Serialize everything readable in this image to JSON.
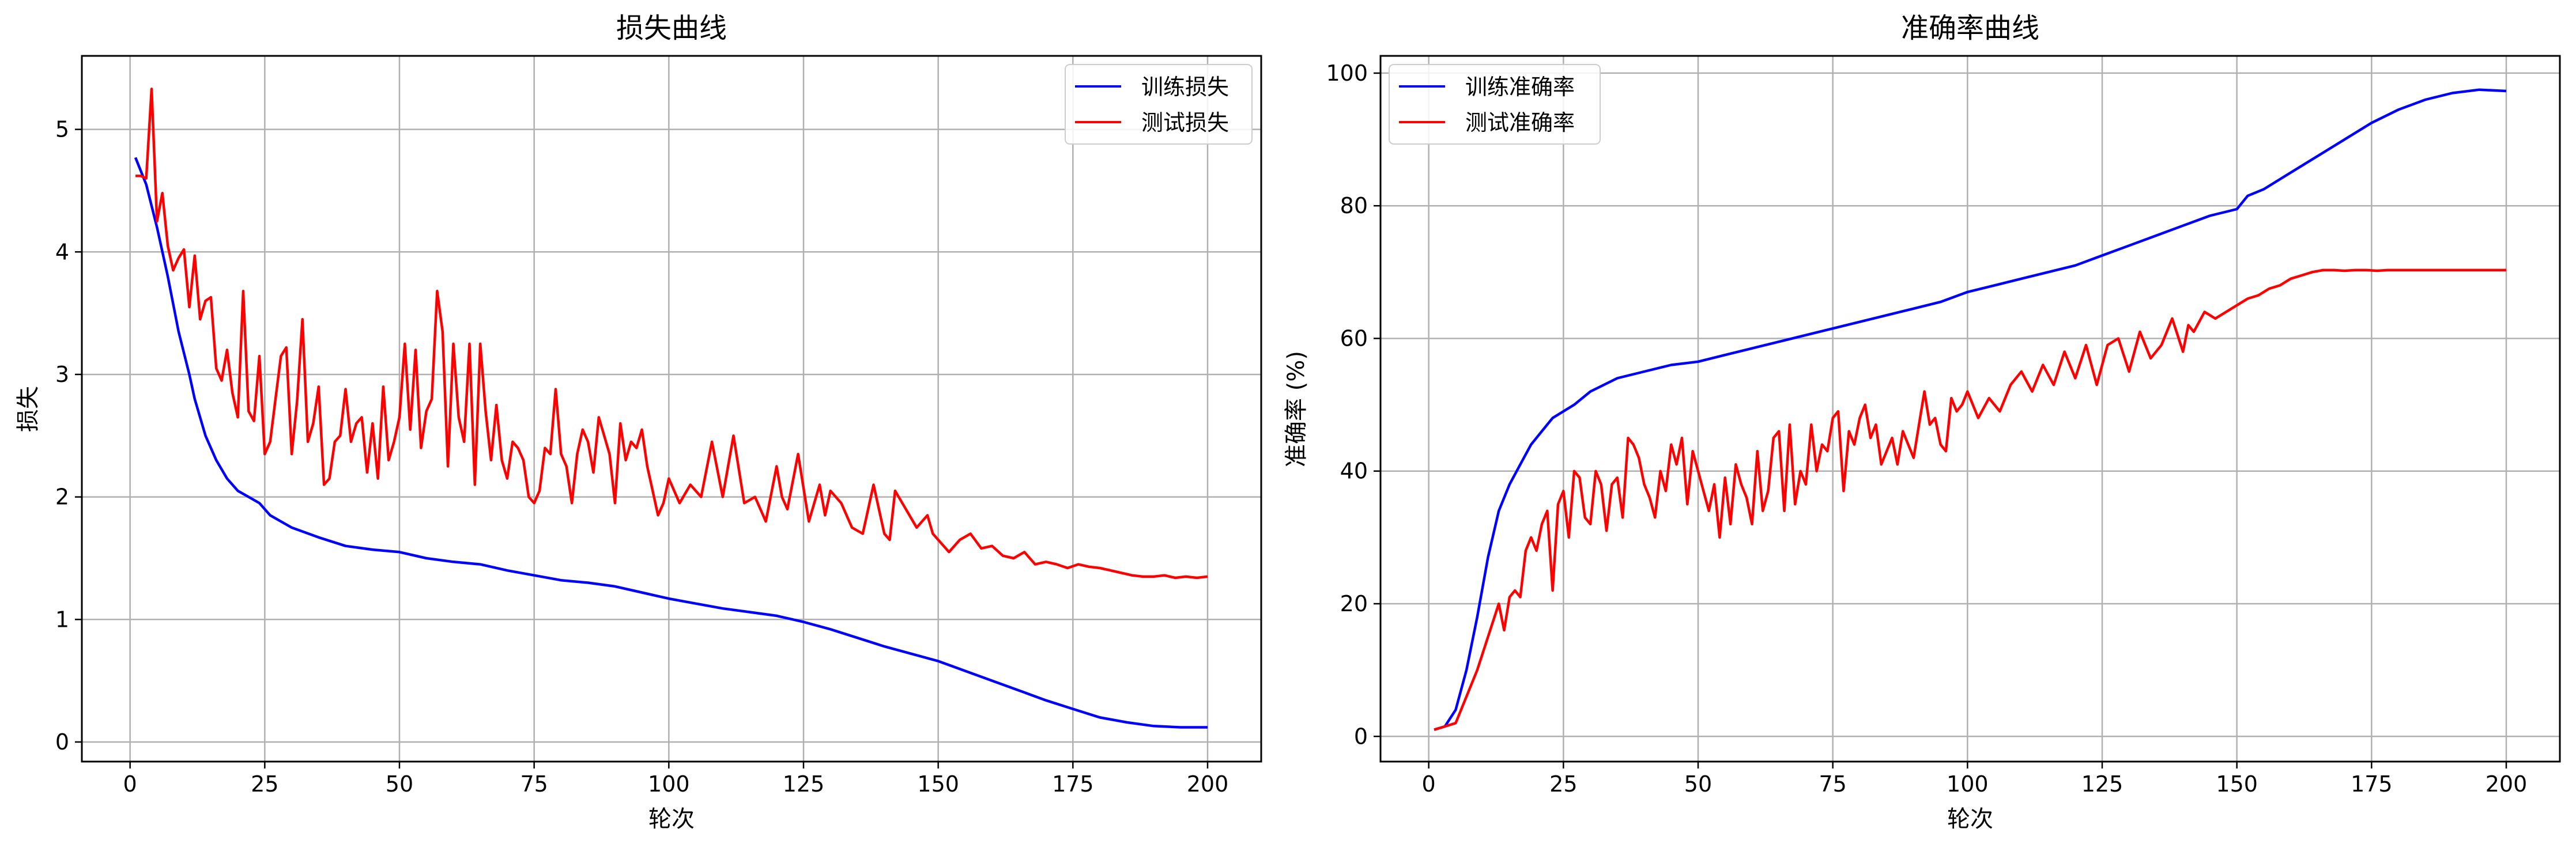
{
  "chart_data": [
    {
      "type": "line",
      "title": "损失曲线",
      "xlabel": "轮次",
      "ylabel": "损失",
      "xlim": [
        -8.95,
        209.95
      ],
      "ylim": [
        -0.16,
        5.6
      ],
      "xticks": [
        0,
        25,
        50,
        75,
        100,
        125,
        150,
        175,
        200
      ],
      "yticks": [
        0,
        1,
        2,
        3,
        4,
        5
      ],
      "grid": true,
      "legend": "top-right",
      "series": [
        {
          "name": "训练损失",
          "color": "#0000ff",
          "x": [
            1,
            3,
            5,
            7,
            9,
            11,
            12,
            14,
            16,
            18,
            20,
            22,
            24,
            26,
            28,
            30,
            35,
            40,
            45,
            50,
            55,
            60,
            65,
            70,
            75,
            80,
            85,
            90,
            95,
            100,
            105,
            110,
            115,
            120,
            125,
            130,
            135,
            140,
            145,
            150,
            155,
            160,
            165,
            170,
            175,
            180,
            185,
            190,
            195,
            200
          ],
          "values": [
            4.77,
            4.55,
            4.2,
            3.8,
            3.35,
            3.0,
            2.8,
            2.5,
            2.3,
            2.15,
            2.05,
            2.0,
            1.95,
            1.85,
            1.8,
            1.75,
            1.67,
            1.6,
            1.57,
            1.55,
            1.5,
            1.47,
            1.45,
            1.4,
            1.36,
            1.32,
            1.3,
            1.27,
            1.22,
            1.17,
            1.13,
            1.09,
            1.06,
            1.03,
            0.98,
            0.92,
            0.85,
            0.78,
            0.72,
            0.66,
            0.58,
            0.5,
            0.42,
            0.34,
            0.27,
            0.2,
            0.16,
            0.13,
            0.12,
            0.12
          ]
        },
        {
          "name": "测试损失",
          "color": "#ff0000",
          "x": [
            1,
            2,
            3,
            4,
            5,
            6,
            7,
            8,
            9,
            10,
            11,
            12,
            13,
            14,
            15,
            16,
            17,
            18,
            19,
            20,
            21,
            22,
            23,
            24,
            25,
            26,
            27,
            28,
            29,
            30,
            31,
            32,
            33,
            34,
            35,
            36,
            37,
            38,
            39,
            40,
            41,
            42,
            43,
            44,
            45,
            46,
            47,
            48,
            49,
            50,
            51,
            52,
            53,
            54,
            55,
            56,
            57,
            58,
            59,
            60,
            61,
            62,
            63,
            64,
            65,
            66,
            67,
            68,
            69,
            70,
            71,
            72,
            73,
            74,
            75,
            76,
            77,
            78,
            79,
            80,
            81,
            82,
            83,
            84,
            85,
            86,
            87,
            88,
            89,
            90,
            91,
            92,
            93,
            94,
            95,
            96,
            97,
            98,
            99,
            100,
            102,
            104,
            106,
            108,
            110,
            112,
            114,
            116,
            118,
            120,
            121,
            122,
            124,
            126,
            128,
            129,
            130,
            132,
            134,
            136,
            138,
            140,
            141,
            142,
            144,
            146,
            148,
            149,
            150,
            152,
            154,
            156,
            158,
            160,
            162,
            164,
            166,
            168,
            170,
            172,
            174,
            176,
            178,
            180,
            182,
            184,
            186,
            188,
            190,
            192,
            194,
            196,
            198,
            200
          ],
          "values": [
            4.62,
            4.62,
            4.6,
            5.33,
            4.25,
            4.48,
            4.05,
            3.85,
            3.95,
            4.02,
            3.55,
            3.97,
            3.45,
            3.6,
            3.63,
            3.05,
            2.95,
            3.2,
            2.85,
            2.65,
            3.68,
            2.7,
            2.62,
            3.15,
            2.35,
            2.45,
            2.8,
            3.15,
            3.22,
            2.35,
            2.78,
            3.45,
            2.45,
            2.6,
            2.9,
            2.1,
            2.15,
            2.45,
            2.5,
            2.88,
            2.45,
            2.6,
            2.65,
            2.2,
            2.6,
            2.15,
            2.9,
            2.3,
            2.45,
            2.65,
            3.25,
            2.55,
            3.2,
            2.4,
            2.7,
            2.8,
            3.68,
            3.35,
            2.25,
            3.25,
            2.65,
            2.45,
            3.25,
            2.1,
            3.25,
            2.7,
            2.3,
            2.75,
            2.3,
            2.15,
            2.45,
            2.4,
            2.3,
            2.0,
            1.95,
            2.05,
            2.4,
            2.35,
            2.88,
            2.35,
            2.25,
            1.95,
            2.35,
            2.55,
            2.45,
            2.2,
            2.65,
            2.5,
            2.35,
            1.95,
            2.6,
            2.3,
            2.45,
            2.4,
            2.55,
            2.25,
            2.05,
            1.85,
            1.95,
            2.15,
            1.95,
            2.1,
            2.0,
            2.45,
            2.0,
            2.5,
            1.95,
            2.0,
            1.8,
            2.25,
            2.0,
            1.9,
            2.35,
            1.8,
            2.1,
            1.85,
            2.05,
            1.95,
            1.75,
            1.7,
            2.1,
            1.7,
            1.65,
            2.05,
            1.9,
            1.75,
            1.85,
            1.7,
            1.65,
            1.55,
            1.65,
            1.7,
            1.58,
            1.6,
            1.52,
            1.5,
            1.55,
            1.45,
            1.47,
            1.45,
            1.42,
            1.45,
            1.43,
            1.42,
            1.4,
            1.38,
            1.36,
            1.35,
            1.35,
            1.36,
            1.34,
            1.35,
            1.34,
            1.35
          ]
        }
      ]
    },
    {
      "type": "line",
      "title": "准确率曲线",
      "xlabel": "轮次",
      "ylabel": "准确率 (%)",
      "xlim": [
        -8.95,
        209.95
      ],
      "ylim": [
        -3.8,
        102.6
      ],
      "xticks": [
        0,
        25,
        50,
        75,
        100,
        125,
        150,
        175,
        200
      ],
      "yticks": [
        0,
        20,
        40,
        60,
        80,
        100
      ],
      "grid": true,
      "legend": "top-left",
      "series": [
        {
          "name": "训练准确率",
          "color": "#0000ff",
          "x": [
            1,
            3,
            5,
            7,
            9,
            11,
            13,
            15,
            17,
            19,
            21,
            23,
            25,
            27,
            30,
            35,
            40,
            45,
            50,
            55,
            60,
            65,
            70,
            75,
            80,
            85,
            90,
            95,
            100,
            105,
            110,
            115,
            120,
            125,
            130,
            135,
            140,
            145,
            150,
            152,
            155,
            160,
            165,
            170,
            175,
            180,
            185,
            190,
            195,
            200
          ],
          "values": [
            1,
            1.5,
            4,
            10,
            18,
            27,
            34,
            38,
            41,
            44,
            46,
            48,
            49,
            50,
            52,
            54,
            55,
            56,
            56.5,
            57.5,
            58.5,
            59.5,
            60.5,
            61.5,
            62.5,
            63.5,
            64.5,
            65.5,
            67,
            68,
            69,
            70,
            71,
            72.5,
            74,
            75.5,
            77,
            78.5,
            79.5,
            81.5,
            82.5,
            85,
            87.5,
            90,
            92.5,
            94.5,
            96,
            97,
            97.5,
            97.3
          ]
        },
        {
          "name": "测试准确率",
          "color": "#ff0000",
          "x": [
            1,
            3,
            5,
            7,
            9,
            11,
            13,
            14,
            15,
            16,
            17,
            18,
            19,
            20,
            21,
            22,
            23,
            24,
            25,
            26,
            27,
            28,
            29,
            30,
            31,
            32,
            33,
            34,
            35,
            36,
            37,
            38,
            39,
            40,
            41,
            42,
            43,
            44,
            45,
            46,
            47,
            48,
            49,
            50,
            51,
            52,
            53,
            54,
            55,
            56,
            57,
            58,
            59,
            60,
            61,
            62,
            63,
            64,
            65,
            66,
            67,
            68,
            69,
            70,
            71,
            72,
            73,
            74,
            75,
            76,
            77,
            78,
            79,
            80,
            81,
            82,
            83,
            84,
            85,
            86,
            87,
            88,
            89,
            90,
            91,
            92,
            93,
            94,
            95,
            96,
            97,
            98,
            99,
            100,
            102,
            104,
            106,
            108,
            110,
            112,
            114,
            116,
            118,
            120,
            122,
            124,
            126,
            128,
            130,
            132,
            134,
            136,
            138,
            140,
            141,
            142,
            144,
            146,
            148,
            150,
            152,
            154,
            156,
            158,
            160,
            162,
            164,
            166,
            168,
            170,
            172,
            174,
            176,
            178,
            180,
            182,
            184,
            186,
            188,
            190,
            192,
            194,
            196,
            198,
            200
          ],
          "values": [
            1,
            1.5,
            2,
            6,
            10,
            15,
            20,
            16,
            21,
            22,
            21,
            28,
            30,
            28,
            32,
            34,
            22,
            35,
            37,
            30,
            40,
            39,
            33,
            32,
            40,
            38,
            31,
            38,
            39,
            33,
            45,
            44,
            42,
            38,
            36,
            33,
            40,
            37,
            44,
            41,
            45,
            35,
            43,
            40,
            37,
            34,
            38,
            30,
            39,
            32,
            41,
            38,
            36,
            32,
            43,
            34,
            37,
            45,
            46,
            34,
            47,
            35,
            40,
            38,
            47,
            40,
            44,
            43,
            48,
            49,
            37,
            46,
            44,
            48,
            50,
            45,
            47,
            41,
            43,
            45,
            41,
            46,
            44,
            42,
            47,
            52,
            47,
            48,
            44,
            43,
            51,
            49,
            50,
            52,
            48,
            51,
            49,
            53,
            55,
            52,
            56,
            53,
            58,
            54,
            59,
            53,
            59,
            60,
            55,
            61,
            57,
            59,
            63,
            58,
            62,
            61,
            64,
            63,
            64,
            65,
            66,
            66.5,
            67.5,
            68,
            69,
            69.5,
            70,
            70.3,
            70.3,
            70.2,
            70.3,
            70.3,
            70.2,
            70.3,
            70.3,
            70.3,
            70.3,
            70.3,
            70.3,
            70.3,
            70.3,
            70.3,
            70.3,
            70.3,
            70.3
          ]
        }
      ]
    }
  ]
}
